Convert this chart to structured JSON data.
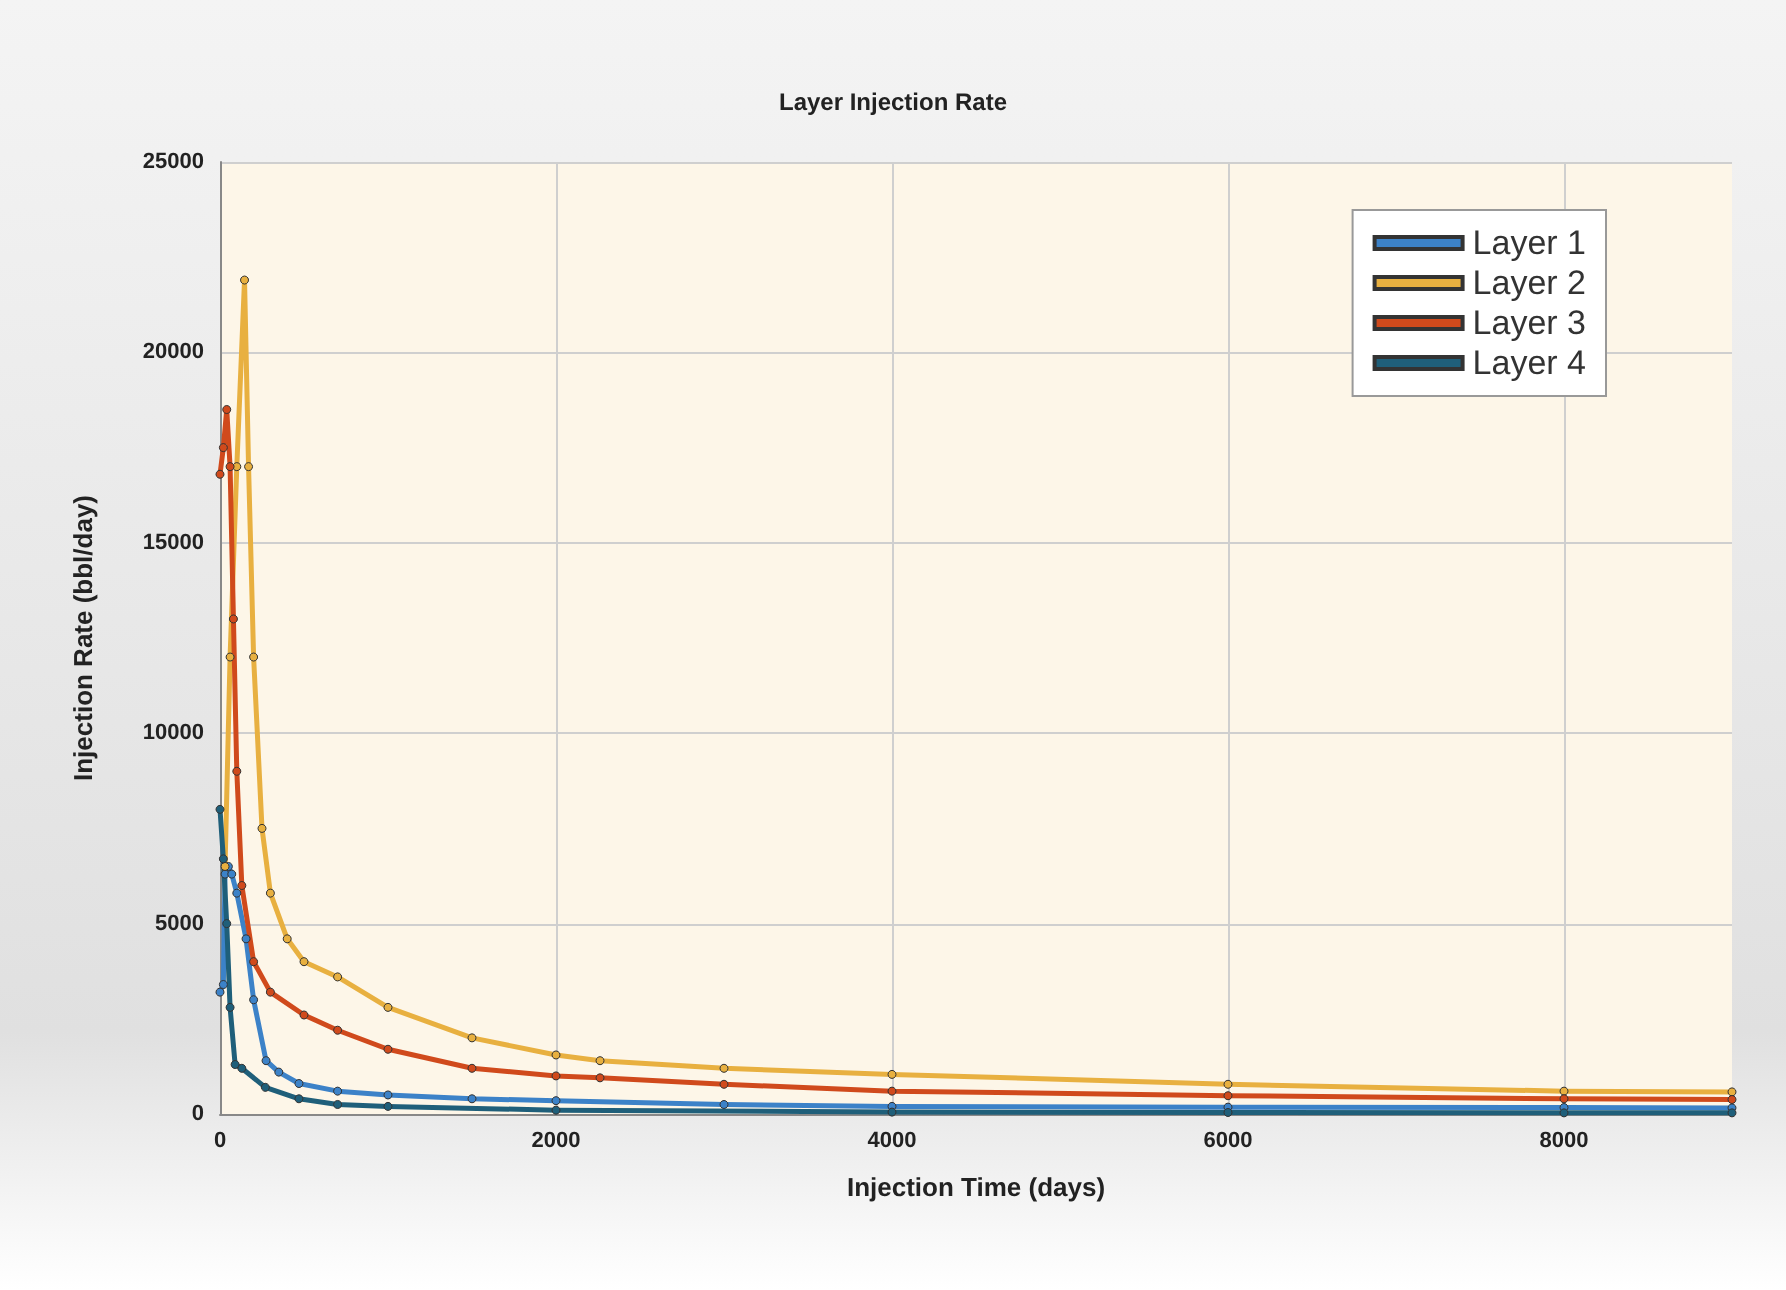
{
  "chart_data": {
    "type": "line",
    "title": "Layer Injection Rate",
    "xlabel": "Injection Time (days)",
    "ylabel": "Injection Rate (bbl/day)",
    "xlim": [
      0,
      9000
    ],
    "xticks": [
      0,
      2000,
      4000,
      6000,
      8000
    ],
    "ylim": [
      0,
      25000
    ],
    "yticks": [
      0,
      5000,
      10000,
      15000,
      20000,
      25000
    ],
    "grid": true,
    "legend": "top right",
    "marker": "circle",
    "line_style": "solid",
    "series": [
      {
        "name": "Layer 1",
        "color": "#3c82c8",
        "x": [
          0,
          20,
          30,
          50,
          70,
          100,
          155,
          200,
          274,
          350,
          470,
          700,
          1000,
          1500,
          2000,
          3000,
          4000,
          6000,
          8000,
          9000
        ],
        "values": [
          3200,
          3400,
          6300,
          6500,
          6300,
          5800,
          4600,
          3000,
          1400,
          1100,
          800,
          600,
          500,
          400,
          350,
          250,
          200,
          180,
          170,
          160
        ]
      },
      {
        "name": "Layer 2",
        "color": "#e8b040",
        "x": [
          30,
          60,
          100,
          146,
          170,
          200,
          250,
          300,
          400,
          500,
          700,
          1000,
          1500,
          2000,
          2262,
          3000,
          4000,
          6000,
          8000,
          9000
        ],
        "values": [
          6500,
          12000,
          17000,
          21900,
          17000,
          12000,
          7500,
          5800,
          4600,
          4000,
          3600,
          2800,
          2000,
          1550,
          1400,
          1200,
          1040,
          780,
          600,
          580
        ]
      },
      {
        "name": "Layer 3",
        "color": "#d04a1c",
        "x": [
          0,
          20,
          40,
          60,
          80,
          100,
          130,
          200,
          300,
          500,
          700,
          1000,
          1500,
          2000,
          2262,
          3000,
          4000,
          6000,
          8000,
          9000
        ],
        "values": [
          16800,
          17500,
          18500,
          17000,
          13000,
          9000,
          6000,
          4000,
          3200,
          2600,
          2200,
          1700,
          1200,
          1000,
          950,
          780,
          600,
          480,
          400,
          380
        ]
      },
      {
        "name": "Layer 4",
        "color": "#1f5f7a",
        "x": [
          0,
          20,
          40,
          60,
          90,
          130,
          270,
          470,
          700,
          1000,
          2000,
          4000,
          6000,
          8000,
          9000
        ],
        "values": [
          8000,
          6700,
          5000,
          2800,
          1300,
          1200,
          700,
          400,
          250,
          200,
          100,
          50,
          40,
          30,
          30
        ]
      }
    ]
  }
}
